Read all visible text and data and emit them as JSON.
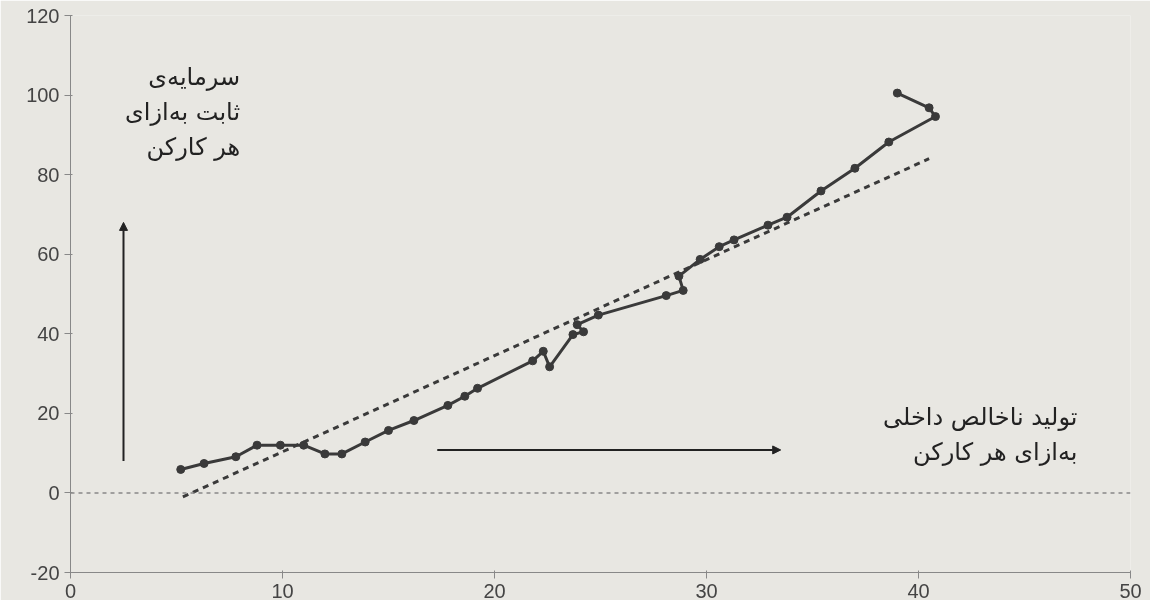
{
  "chart_data": {
    "type": "line",
    "xlabel": "تولید ناخالص داخلی\nبه‌ازای هر کارکن",
    "ylabel": "سرمایه‌ی\nثابت به‌ازای\nهر کارکن",
    "xlim": [
      0,
      50
    ],
    "ylim": [
      -20,
      120
    ],
    "xticks": [
      0,
      10,
      20,
      30,
      40,
      50
    ],
    "yticks": [
      -20,
      0,
      20,
      40,
      60,
      80,
      100,
      120
    ],
    "ref_lines": [
      {
        "axis": "y",
        "value": 0,
        "color": "#888888",
        "line_style": "dashed"
      }
    ],
    "series": [
      {
        "color": "#3a3a3a",
        "line_style": "solid",
        "marker": "circle",
        "x": [
          5.2,
          6.3,
          7.8,
          8.8,
          9.9,
          11,
          12,
          12.8,
          13.9,
          15,
          16.2,
          17.8,
          18.6,
          19.2,
          21.8,
          22.3,
          22.6,
          23.7,
          24.2,
          23.9,
          24.9,
          28.1,
          28.9,
          28.7,
          29.7,
          30.6,
          31.3,
          32.9,
          33.8,
          35.4,
          37,
          38.6,
          40.8,
          40.5,
          39
        ],
        "values": [
          5.9,
          7.4,
          9.1,
          12,
          12,
          12,
          9.8,
          9.8,
          12.8,
          15.7,
          18.2,
          22,
          24.3,
          26.3,
          33.2,
          35.6,
          31.7,
          39.8,
          40.5,
          42.3,
          44.7,
          49.6,
          50.9,
          54.5,
          58.7,
          61.9,
          63.6,
          67.3,
          69.3,
          75.9,
          81.6,
          88.2,
          94.6,
          96.8,
          100.5
        ]
      },
      {
        "type": "line",
        "color": "#3a3a3a",
        "line_style": "dashed",
        "marker": "none",
        "x": [
          5.3,
          40.5
        ],
        "values": [
          -1,
          84
        ]
      }
    ]
  }
}
